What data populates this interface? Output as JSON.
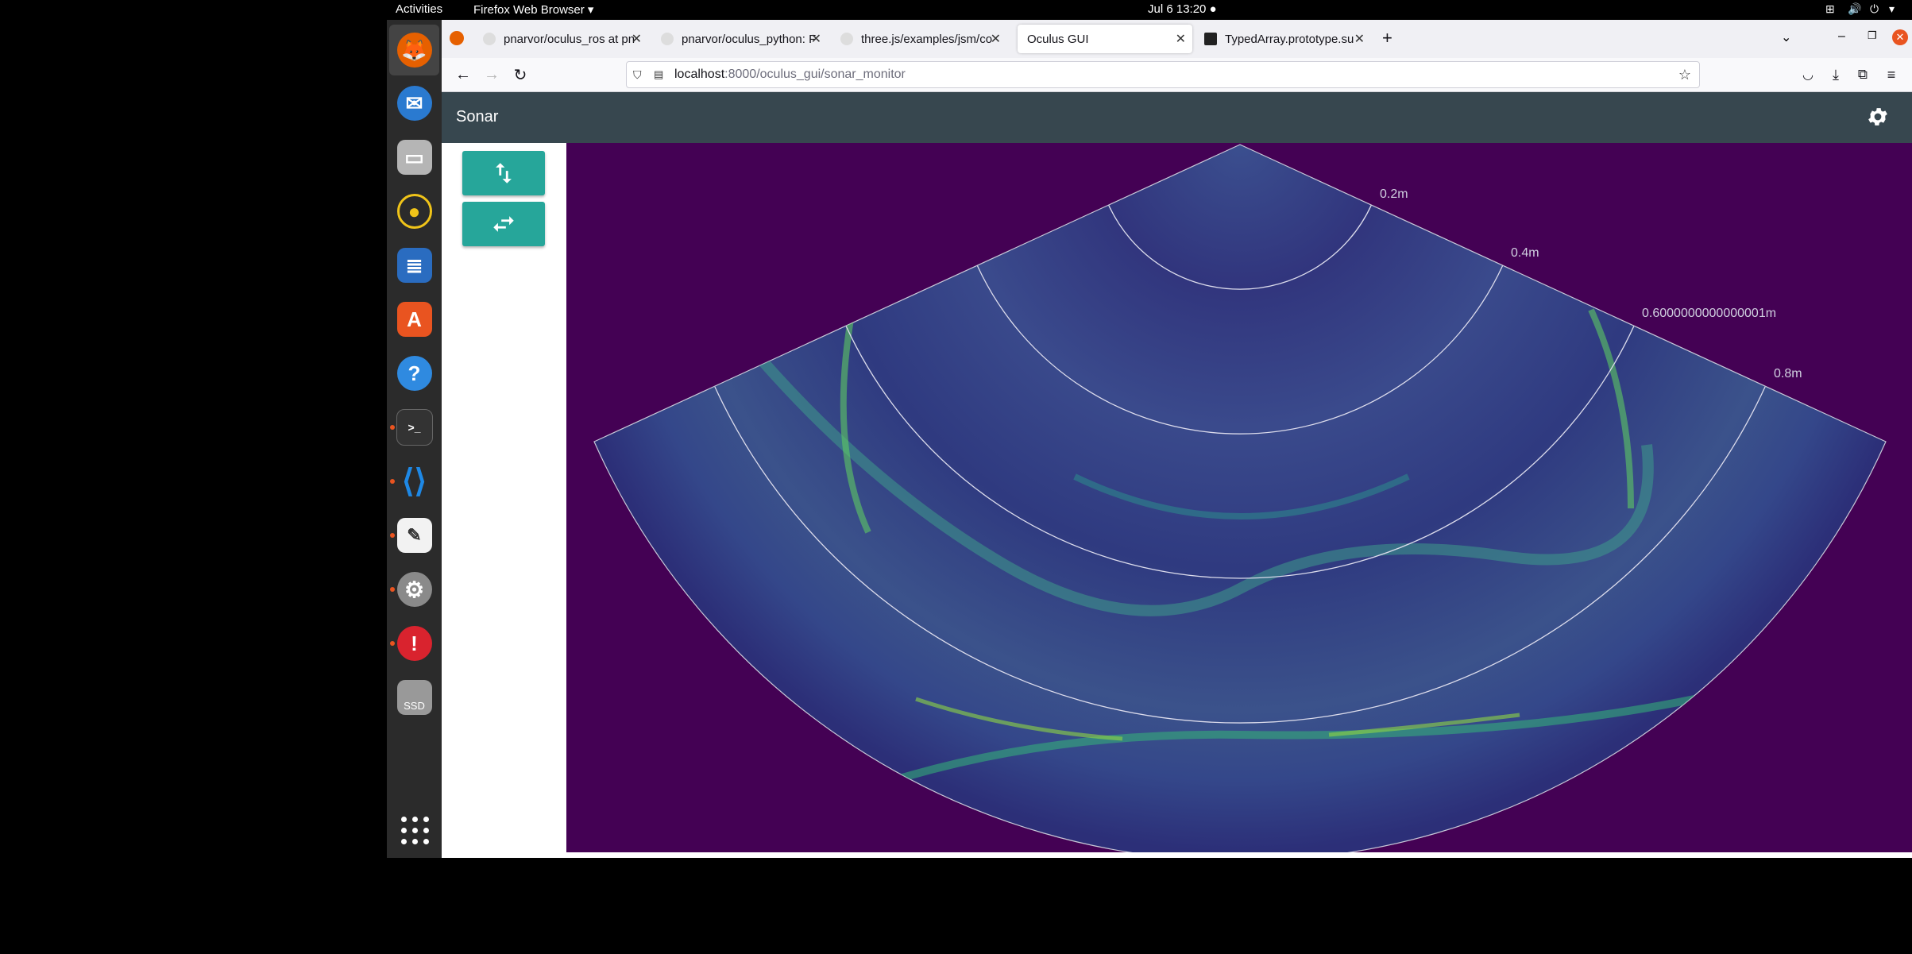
{
  "topbar": {
    "activities": "Activities",
    "app_menu": "Firefox Web Browser ▾",
    "datetime": "Jul 6  13:20 ●"
  },
  "dock": {
    "items": [
      {
        "name": "firefox",
        "color": "#e66000"
      },
      {
        "name": "thunderbird",
        "color": "#2a7ad0"
      },
      {
        "name": "files",
        "color": "#9b9b9b"
      },
      {
        "name": "rhythmbox",
        "color": "#f0c419"
      },
      {
        "name": "libreoffice-writer",
        "color": "#2a6cc0"
      },
      {
        "name": "app-center",
        "color": "#e95420"
      },
      {
        "name": "help",
        "color": "#2f8ae0"
      },
      {
        "name": "terminal",
        "color": "#333333"
      },
      {
        "name": "vscode",
        "color": "#1e88e5"
      },
      {
        "name": "text-editor",
        "color": "#f2c94c"
      },
      {
        "name": "settings",
        "color": "#8a8a8a"
      },
      {
        "name": "updates",
        "color": "#d9232e"
      },
      {
        "name": "ssd-drive",
        "color": "#888888"
      }
    ],
    "ssd_label": "SSD"
  },
  "browser": {
    "tabs": [
      {
        "title": "pnarvor/oculus_ros at pn",
        "active": false
      },
      {
        "title": "pnarvor/oculus_python: F",
        "active": false
      },
      {
        "title": "three.js/examples/jsm/co",
        "active": false
      },
      {
        "title": "Oculus GUI",
        "active": true
      },
      {
        "title": "TypedArray.prototype.su",
        "active": false
      }
    ],
    "url_host": "localhost",
    "url_path": ":8000/oculus_gui/sonar_monitor"
  },
  "app": {
    "title": "Sonar",
    "range_labels": [
      "0.2m",
      "0.4m",
      "0.6000000000000001m",
      "0.8m"
    ],
    "buttons": [
      "vertical-flip",
      "horizontal-flip"
    ]
  },
  "colors": {
    "appbar": "#37474f",
    "accent": "#26a69a",
    "sonar_bg": "#440154"
  }
}
